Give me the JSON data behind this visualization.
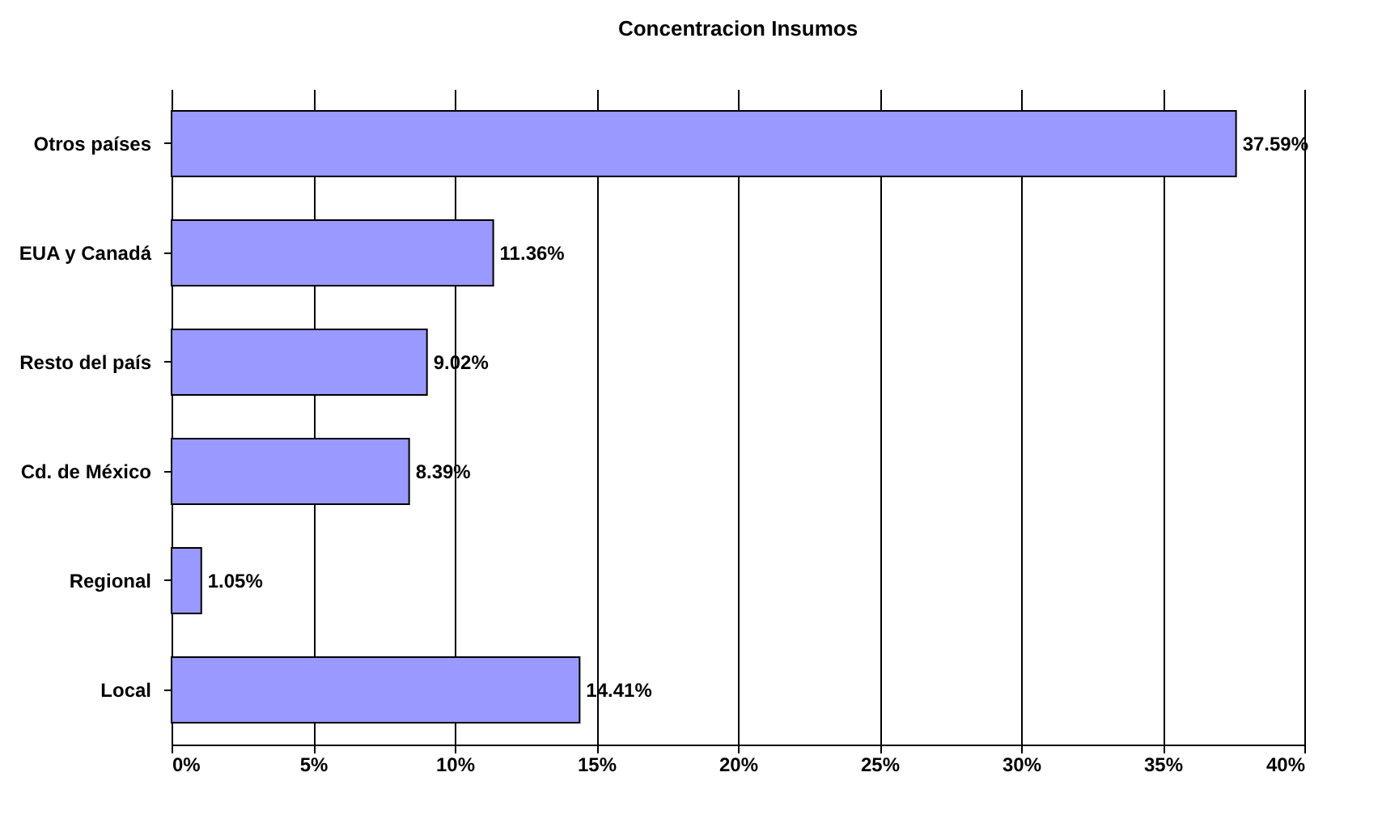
{
  "chart_data": {
    "type": "bar",
    "orientation": "horizontal",
    "title": "Concentracion Insumos",
    "categories": [
      "Otros países",
      "EUA y Canadá",
      "Resto del país",
      "Cd. de México",
      "Regional",
      "Local"
    ],
    "values": [
      37.59,
      11.36,
      9.02,
      8.39,
      1.05,
      14.41
    ],
    "value_labels": [
      "37.59%",
      "11.36%",
      "9.02%",
      "8.39%",
      "1.05%",
      "14.41%"
    ],
    "color": "#9999ff",
    "xlim": [
      0,
      40
    ],
    "xticks": [
      {
        "value": 0,
        "label": "0%"
      },
      {
        "value": 5,
        "label": "5%"
      },
      {
        "value": 10,
        "label": "10%"
      },
      {
        "value": 15,
        "label": "15%"
      },
      {
        "value": 20,
        "label": "20%"
      },
      {
        "value": 25,
        "label": "25%"
      },
      {
        "value": 30,
        "label": "30%"
      },
      {
        "value": 35,
        "label": "35%"
      },
      {
        "value": 40,
        "label": "40%"
      }
    ],
    "grid": "x"
  }
}
